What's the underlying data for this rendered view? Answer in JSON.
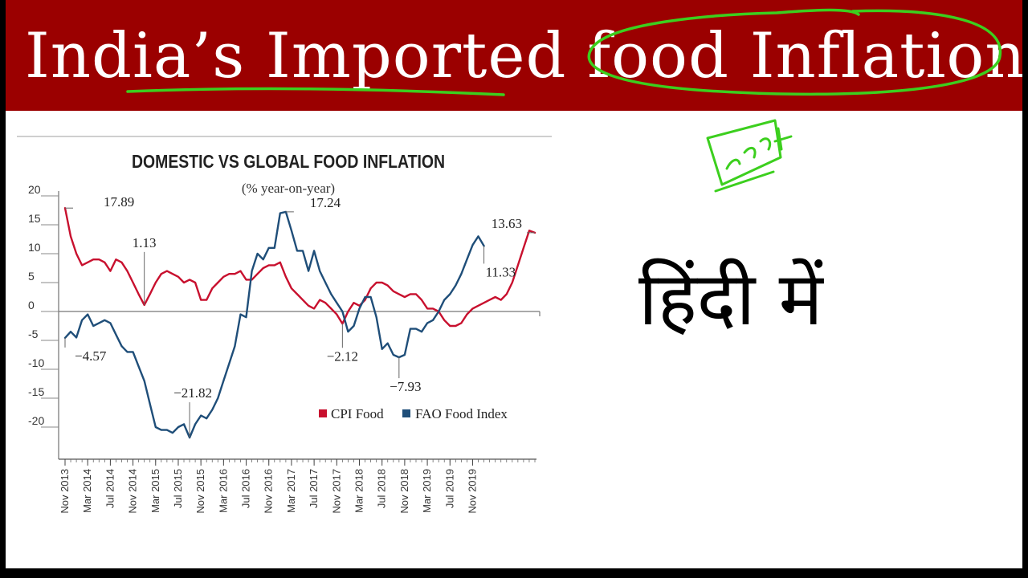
{
  "slide": {
    "title": "India’s Imported food Inflation",
    "hindi_text": "हिंदी में",
    "colors": {
      "banner": "#9b0000",
      "highlighter": "#3ccf1e"
    },
    "annotations": [
      {
        "name": "underline-scribble",
        "kind": "highlighter-stroke"
      },
      {
        "name": "ellipse-scribble",
        "kind": "highlighter-stroke"
      },
      {
        "name": "food-box-scribble",
        "kind": "handwritten-word"
      }
    ]
  },
  "chart_data": {
    "type": "line",
    "title": "DOMESTIC VS GLOBAL FOOD INFLATION",
    "subtitle": "(% year-on-year)",
    "xlabel": "",
    "ylabel": "",
    "ylim": [
      -25,
      20
    ],
    "yticks": [
      20,
      15,
      10,
      5,
      0,
      -5,
      -10,
      -15,
      -20
    ],
    "x_start": "Nov 2013",
    "x_ticks": [
      "Nov 2013",
      "Mar 2014",
      "Jul 2014",
      "Nov 2014",
      "Mar 2015",
      "Jul 2015",
      "Nov 2015",
      "Mar 2016",
      "Jul 2016",
      "Nov 2016",
      "Mar 2017",
      "Jul 2017",
      "Nov 2017",
      "Mar 2018",
      "Jul 2018",
      "Nov 2018",
      "Mar 2019",
      "Jul 2019",
      "Nov 2019"
    ],
    "legend_position": "bottom-right",
    "colors": {
      "cpi": "#c8102e",
      "fao": "#1f4e79"
    },
    "series": [
      {
        "name": "CPI Food",
        "values": [
          17.89,
          13,
          10,
          8,
          8.5,
          9,
          9,
          8.5,
          7,
          9,
          8.5,
          7,
          5,
          3,
          1.13,
          3,
          5,
          6.5,
          7,
          6.5,
          6,
          5,
          5.5,
          5,
          2,
          2,
          4,
          5,
          6,
          6.5,
          6.5,
          7,
          5.5,
          5.5,
          6.5,
          7.5,
          8,
          8,
          8.5,
          6,
          4,
          3,
          2,
          1,
          0.5,
          2,
          1.5,
          0.5,
          -0.5,
          -2.12,
          0,
          1.5,
          1,
          2,
          4,
          5,
          5,
          4.5,
          3.5,
          3,
          2.5,
          3,
          3,
          2,
          0.5,
          0.5,
          0,
          -1.5,
          -2.5,
          -2.5,
          -2,
          -0.5,
          0.5,
          1,
          1.5,
          2,
          2.5,
          2,
          3,
          5,
          8,
          11,
          14,
          13.63
        ]
      },
      {
        "name": "FAO Food Index",
        "values": [
          -4.57,
          -3.5,
          -4.5,
          -1.5,
          -0.5,
          -2.5,
          -2,
          -1.5,
          -2,
          -4,
          -6,
          -7,
          -7,
          -9.5,
          -12,
          -16,
          -20,
          -20.5,
          -20.5,
          -21,
          -20,
          -19.5,
          -21.82,
          -19.5,
          -18,
          -18.5,
          -17,
          -15,
          -12,
          -9,
          -6,
          -0.5,
          -1,
          7,
          10,
          9,
          11,
          11,
          17,
          17.24,
          14,
          10.5,
          10.5,
          7,
          10.5,
          7,
          5,
          3,
          1.5,
          0,
          -3.5,
          -2.5,
          0.5,
          2.5,
          2.5,
          -1,
          -6.5,
          -5.5,
          -7.5,
          -7.93,
          -7.5,
          -3,
          -3,
          -3.5,
          -2,
          -1.5,
          0,
          2,
          3,
          4.5,
          6.5,
          9,
          11.5,
          13,
          11.33
        ]
      }
    ],
    "annotations": [
      {
        "text": "17.89",
        "series": "CPI Food",
        "index": 0
      },
      {
        "text": "1.13",
        "series": "CPI Food",
        "index": 14
      },
      {
        "text": "−2.12",
        "series": "CPI Food",
        "index": 49
      },
      {
        "text": "13.63",
        "series": "CPI Food",
        "index": 83
      },
      {
        "text": "−4.57",
        "series": "FAO Food Index",
        "index": 0
      },
      {
        "text": "−21.82",
        "series": "FAO Food Index",
        "index": 22
      },
      {
        "text": "17.24",
        "series": "FAO Food Index",
        "index": 39
      },
      {
        "text": "−7.93",
        "series": "FAO Food Index",
        "index": 59
      },
      {
        "text": "11.33",
        "series": "FAO Food Index",
        "index": 74
      }
    ]
  }
}
